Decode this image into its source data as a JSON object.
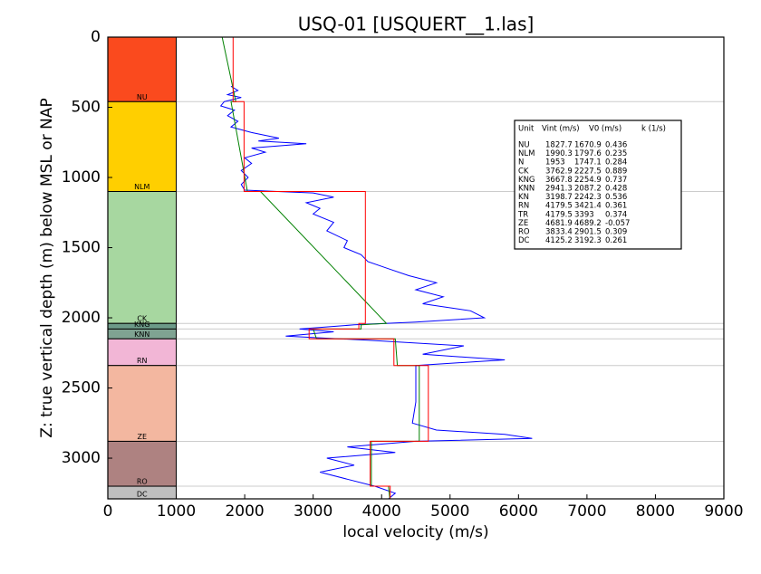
{
  "chart_data": {
    "type": "line",
    "title": "USQ-01 [USQUERT__1.las]",
    "x_label": "local velocity (m/s)",
    "y_label": "Z: true vertical depth (m) below MSL or NAP",
    "xlim": [
      0,
      9000
    ],
    "xticks": [
      0,
      1000,
      2000,
      3000,
      4000,
      5000,
      6000,
      7000,
      8000,
      9000
    ],
    "ylim": [
      0,
      3290
    ],
    "yticks": [
      0,
      500,
      1000,
      1500,
      2000,
      2500,
      3000
    ],
    "y_inverted": true,
    "layer_xlim": [
      0,
      1000
    ],
    "layers": [
      {
        "label": "NU",
        "top": 0,
        "base": 460,
        "color": "#fa4a1e"
      },
      {
        "label": "NLM",
        "top": 460,
        "base": 1100,
        "color": "#ffcf00"
      },
      {
        "label": "CK",
        "top": 1100,
        "base": 2040,
        "color": "#a7d7a0"
      },
      {
        "label": "KNG",
        "top": 2040,
        "base": 2080,
        "color": "#6c9a88"
      },
      {
        "label": "KNN",
        "top": 2080,
        "base": 2150,
        "color": "#7fa392"
      },
      {
        "label": "RN",
        "top": 2150,
        "base": 2340,
        "color": "#f2b6d6"
      },
      {
        "label": "ZE",
        "top": 2340,
        "base": 2880,
        "color": "#f3b7a0"
      },
      {
        "label": "RO",
        "top": 2880,
        "base": 3200,
        "color": "#ae8281"
      },
      {
        "label": "DC",
        "top": 3200,
        "base": 3290,
        "color": "#bfbfbf"
      }
    ],
    "series": [
      {
        "color": "#0000ff",
        "x": [
          1800,
          1900,
          1750,
          1950,
          1700,
          1650,
          1850,
          1750,
          1900,
          1800,
          2100,
          2500,
          2200,
          2900,
          2100,
          2300,
          2000,
          2100,
          1950,
          2050,
          1950,
          2000,
          3000,
          3300,
          2900,
          3100,
          3000,
          3300,
          3200,
          3500,
          3450,
          3700,
          3800,
          4100,
          4400,
          4800,
          4500,
          4900,
          4600,
          5300,
          5500,
          4500,
          3600,
          2800,
          3300,
          2600,
          3800,
          5200,
          4600,
          5800,
          4500,
          4500,
          4500,
          4450,
          4800,
          5800,
          6200,
          4500,
          3500,
          4200,
          3200,
          3600,
          3100,
          3500,
          3900,
          4200,
          4100
        ],
        "y": [
          350,
          380,
          410,
          430,
          460,
          490,
          520,
          560,
          600,
          640,
          680,
          720,
          740,
          760,
          790,
          820,
          860,
          900,
          950,
          1000,
          1050,
          1090,
          1110,
          1140,
          1180,
          1220,
          1260,
          1320,
          1380,
          1450,
          1500,
          1550,
          1600,
          1650,
          1700,
          1750,
          1800,
          1850,
          1900,
          1950,
          2000,
          2030,
          2050,
          2080,
          2100,
          2130,
          2160,
          2200,
          2260,
          2300,
          2340,
          2400,
          2600,
          2750,
          2800,
          2830,
          2860,
          2880,
          2920,
          2960,
          3000,
          3050,
          3100,
          3150,
          3200,
          3250,
          3290
        ]
      },
      {
        "color": "#008000",
        "x": [
          1670,
          1870,
          1800,
          2040,
          2230,
          4070,
          3700,
          3700,
          3000,
          3050,
          4200,
          4230,
          4550,
          4550,
          3850,
          3850,
          4100,
          4120
        ],
        "y": [
          0,
          460,
          460,
          1100,
          1100,
          2040,
          2050,
          2080,
          2080,
          2150,
          2150,
          2340,
          2340,
          2880,
          2880,
          3200,
          3200,
          3290
        ]
      },
      {
        "color": "#ff0000",
        "x": [
          1830,
          1830,
          1990,
          1990,
          3763,
          3763,
          3668,
          3668,
          2941,
          2941,
          4180,
          4180,
          4682,
          4682,
          3833,
          3833,
          4125,
          4125
        ],
        "y": [
          0,
          460,
          460,
          1100,
          1100,
          2040,
          2040,
          2080,
          2080,
          2150,
          2150,
          2340,
          2340,
          2880,
          2880,
          3200,
          3200,
          3290
        ]
      }
    ],
    "table": {
      "columns": [
        "Unit",
        "Vint (m/s)",
        "V0 (m/s)",
        "k (1/s)"
      ],
      "rows": [
        [
          "NU",
          1827.7,
          1670.9,
          0.436
        ],
        [
          "NLM",
          1990.3,
          1797.6,
          0.235
        ],
        [
          "N",
          1953.0,
          1747.1,
          0.284
        ],
        [
          "CK",
          3762.9,
          2227.5,
          0.889
        ],
        [
          "KNG",
          3667.8,
          2254.9,
          0.737
        ],
        [
          "KNN",
          2941.3,
          2087.2,
          0.428
        ],
        [
          "KN",
          3198.7,
          2242.3,
          0.536
        ],
        [
          "RN",
          4179.5,
          3421.4,
          0.361
        ],
        [
          "TR",
          4179.5,
          3393.0,
          0.374
        ],
        [
          "ZE",
          4681.9,
          4689.2,
          -0.057
        ],
        [
          "RO",
          3833.4,
          2901.5,
          0.309
        ],
        [
          "DC",
          4125.2,
          3192.3,
          0.261
        ]
      ]
    }
  }
}
